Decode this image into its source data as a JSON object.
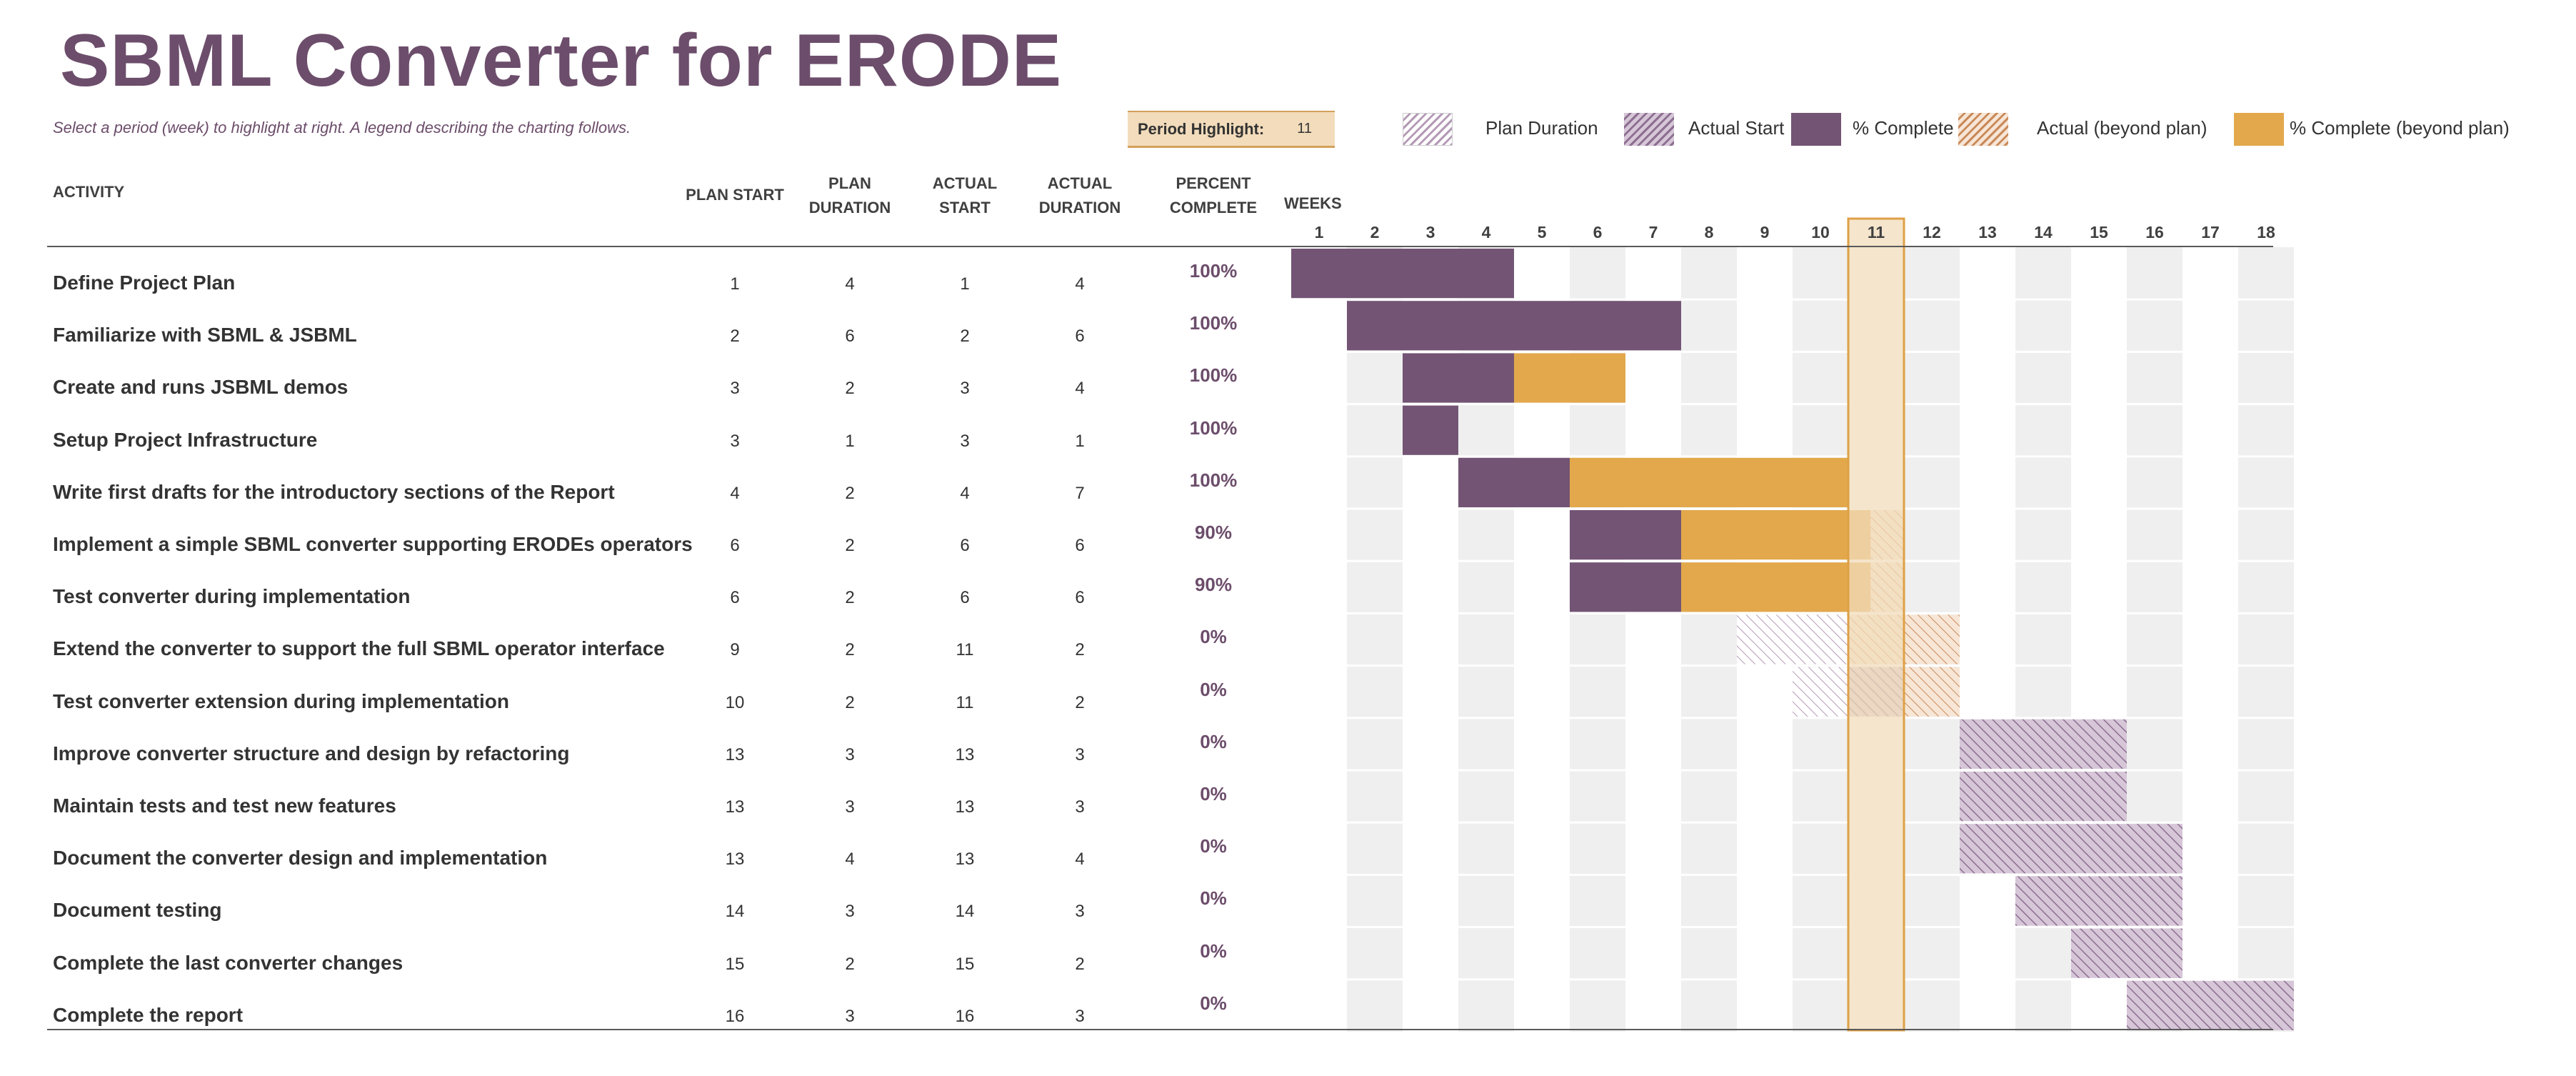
{
  "title": "SBML Converter for ERODE",
  "subtitle": "Select a period (week) to highlight at right.  A legend describing the charting follows.",
  "period_highlight": {
    "label": "Period Highlight:",
    "value": 11
  },
  "legend": [
    {
      "key": "plan",
      "label": "Plan Duration"
    },
    {
      "key": "actual",
      "label": "Actual Start"
    },
    {
      "key": "complete",
      "label": "% Complete"
    },
    {
      "key": "beyond",
      "label": "Actual (beyond plan)"
    },
    {
      "key": "complete_beyond",
      "label": "% Complete (beyond plan)"
    }
  ],
  "headers": {
    "activity": "ACTIVITY",
    "plan_start": "PLAN START",
    "plan_duration": [
      "PLAN",
      "DURATION"
    ],
    "actual_start": [
      "ACTUAL",
      "START"
    ],
    "actual_duration": [
      "ACTUAL",
      "DURATION"
    ],
    "percent_complete": [
      "PERCENT",
      "COMPLETE"
    ],
    "weeks": "WEEKS"
  },
  "colors": {
    "purple": "#735474",
    "gold": "#e2a84b",
    "highlight": "#f2dcbb",
    "highlight_border": "#dea046",
    "gray_column": "#efefef",
    "hatch_purple": "#b49ab5",
    "hatch_orange": "#d9a67a"
  },
  "chart_data": {
    "type": "gantt",
    "weeks": [
      1,
      2,
      3,
      4,
      5,
      6,
      7,
      8,
      9,
      10,
      11,
      12,
      13,
      14,
      15,
      16,
      17,
      18
    ],
    "highlight_week": 11,
    "tasks": [
      {
        "activity": "Define Project Plan",
        "plan_start": 1,
        "plan_duration": 4,
        "actual_start": 1,
        "actual_duration": 4,
        "percent": "100%"
      },
      {
        "activity": "Familiarize with SBML & JSBML",
        "plan_start": 2,
        "plan_duration": 6,
        "actual_start": 2,
        "actual_duration": 6,
        "percent": "100%"
      },
      {
        "activity": "Create and runs JSBML demos",
        "plan_start": 3,
        "plan_duration": 2,
        "actual_start": 3,
        "actual_duration": 4,
        "percent": "100%"
      },
      {
        "activity": "Setup Project Infrastructure",
        "plan_start": 3,
        "plan_duration": 1,
        "actual_start": 3,
        "actual_duration": 1,
        "percent": "100%"
      },
      {
        "activity": "Write first drafts for the introductory sections of the Report",
        "plan_start": 4,
        "plan_duration": 2,
        "actual_start": 4,
        "actual_duration": 7,
        "percent": "100%"
      },
      {
        "activity": "Implement a simple SBML converter supporting ERODEs operators",
        "plan_start": 6,
        "plan_duration": 2,
        "actual_start": 6,
        "actual_duration": 6,
        "percent": "90%"
      },
      {
        "activity": "Test converter during implementation",
        "plan_start": 6,
        "plan_duration": 2,
        "actual_start": 6,
        "actual_duration": 6,
        "percent": "90%"
      },
      {
        "activity": "Extend the converter to support the full SBML operator interface",
        "plan_start": 9,
        "plan_duration": 2,
        "actual_start": 11,
        "actual_duration": 2,
        "percent": "0%"
      },
      {
        "activity": "Test converter extension during implementation",
        "plan_start": 10,
        "plan_duration": 2,
        "actual_start": 11,
        "actual_duration": 2,
        "percent": "0%"
      },
      {
        "activity": "Improve converter structure and design by refactoring",
        "plan_start": 13,
        "plan_duration": 3,
        "actual_start": 13,
        "actual_duration": 3,
        "percent": "0%"
      },
      {
        "activity": "Maintain tests and test new features",
        "plan_start": 13,
        "plan_duration": 3,
        "actual_start": 13,
        "actual_duration": 3,
        "percent": "0%"
      },
      {
        "activity": "Document the converter design and implementation",
        "plan_start": 13,
        "plan_duration": 4,
        "actual_start": 13,
        "actual_duration": 4,
        "percent": "0%"
      },
      {
        "activity": "Document testing",
        "plan_start": 14,
        "plan_duration": 3,
        "actual_start": 14,
        "actual_duration": 3,
        "percent": "0%"
      },
      {
        "activity": "Complete the last converter changes",
        "plan_start": 15,
        "plan_duration": 2,
        "actual_start": 15,
        "actual_duration": 2,
        "percent": "0%"
      },
      {
        "activity": "Complete the report",
        "plan_start": 16,
        "plan_duration": 3,
        "actual_start": 16,
        "actual_duration": 3,
        "percent": "0%"
      }
    ]
  }
}
